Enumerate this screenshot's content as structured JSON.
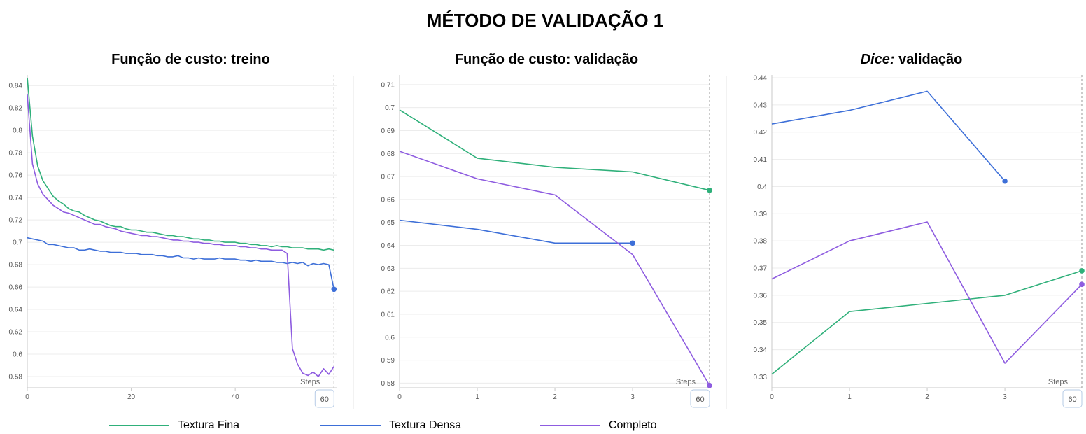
{
  "title": "MÉTODO DE VALIDAÇÃO 1",
  "colors": {
    "fina": "#2fb07a",
    "densa": "#3d6fd8",
    "completo": "#8e5ce0"
  },
  "legend": [
    {
      "name": "Textura Fina",
      "color": "#2fb07a"
    },
    {
      "name": "Textura Densa",
      "color": "#3d6fd8"
    },
    {
      "name": "Completo",
      "color": "#8e5ce0"
    }
  ],
  "chart_data": [
    {
      "type": "line",
      "title_prefix": "",
      "title": "Função de custo: treino",
      "xlabel": "Steps",
      "xlim": [
        0,
        59.5
      ],
      "ylim": [
        0.57,
        0.847
      ],
      "xticks": [
        0,
        20,
        40
      ],
      "yticks": [
        0.58,
        0.6,
        0.62,
        0.64,
        0.66,
        0.68,
        0.7,
        0.72,
        0.74,
        0.76,
        0.78,
        0.8,
        0.82,
        0.84
      ],
      "cursor": {
        "x": 59,
        "label": "60"
      },
      "grid": true,
      "series": [
        {
          "name": "Textura Fina",
          "color": "#2fb07a",
          "marker": false,
          "x": [
            0,
            1,
            2,
            3,
            4,
            5,
            6,
            7,
            8,
            9,
            10,
            11,
            12,
            13,
            14,
            15,
            16,
            17,
            18,
            19,
            20,
            21,
            22,
            23,
            24,
            25,
            26,
            27,
            28,
            29,
            30,
            31,
            32,
            33,
            34,
            35,
            36,
            37,
            38,
            39,
            40,
            41,
            42,
            43,
            44,
            45,
            46,
            47,
            48,
            49,
            50,
            51,
            52,
            53,
            54,
            55,
            56,
            57,
            58,
            59
          ],
          "y": [
            0.847,
            0.795,
            0.768,
            0.755,
            0.748,
            0.741,
            0.737,
            0.734,
            0.73,
            0.728,
            0.727,
            0.724,
            0.722,
            0.72,
            0.719,
            0.717,
            0.715,
            0.714,
            0.714,
            0.712,
            0.711,
            0.711,
            0.71,
            0.709,
            0.709,
            0.708,
            0.707,
            0.706,
            0.706,
            0.705,
            0.705,
            0.704,
            0.703,
            0.703,
            0.702,
            0.702,
            0.701,
            0.701,
            0.7,
            0.7,
            0.7,
            0.699,
            0.699,
            0.698,
            0.698,
            0.697,
            0.697,
            0.696,
            0.697,
            0.696,
            0.696,
            0.695,
            0.695,
            0.695,
            0.694,
            0.694,
            0.694,
            0.693,
            0.694,
            0.693
          ]
        },
        {
          "name": "Textura Densa",
          "color": "#3d6fd8",
          "marker": true,
          "x": [
            0,
            1,
            2,
            3,
            4,
            5,
            6,
            7,
            8,
            9,
            10,
            11,
            12,
            13,
            14,
            15,
            16,
            17,
            18,
            19,
            20,
            21,
            22,
            23,
            24,
            25,
            26,
            27,
            28,
            29,
            30,
            31,
            32,
            33,
            34,
            35,
            36,
            37,
            38,
            39,
            40,
            41,
            42,
            43,
            44,
            45,
            46,
            47,
            48,
            49,
            50,
            51,
            52,
            53,
            54,
            55,
            56,
            57,
            58,
            59
          ],
          "y": [
            0.704,
            0.703,
            0.702,
            0.701,
            0.698,
            0.698,
            0.697,
            0.696,
            0.695,
            0.695,
            0.693,
            0.693,
            0.694,
            0.693,
            0.692,
            0.692,
            0.691,
            0.691,
            0.691,
            0.69,
            0.69,
            0.69,
            0.689,
            0.689,
            0.689,
            0.688,
            0.688,
            0.687,
            0.687,
            0.688,
            0.686,
            0.686,
            0.685,
            0.686,
            0.685,
            0.685,
            0.685,
            0.686,
            0.685,
            0.685,
            0.685,
            0.684,
            0.684,
            0.683,
            0.684,
            0.683,
            0.683,
            0.683,
            0.682,
            0.682,
            0.681,
            0.682,
            0.681,
            0.682,
            0.679,
            0.681,
            0.68,
            0.681,
            0.68,
            0.658
          ]
        },
        {
          "name": "Completo",
          "color": "#8e5ce0",
          "marker": false,
          "x": [
            0,
            1,
            2,
            3,
            4,
            5,
            6,
            7,
            8,
            9,
            10,
            11,
            12,
            13,
            14,
            15,
            16,
            17,
            18,
            19,
            20,
            21,
            22,
            23,
            24,
            25,
            26,
            27,
            28,
            29,
            30,
            31,
            32,
            33,
            34,
            35,
            36,
            37,
            38,
            39,
            40,
            41,
            42,
            43,
            44,
            45,
            46,
            47,
            48,
            49,
            50,
            51,
            52,
            53,
            54,
            55,
            56,
            57,
            58,
            59
          ],
          "y": [
            0.832,
            0.77,
            0.752,
            0.743,
            0.738,
            0.733,
            0.73,
            0.727,
            0.726,
            0.724,
            0.722,
            0.72,
            0.718,
            0.716,
            0.716,
            0.714,
            0.713,
            0.712,
            0.71,
            0.709,
            0.708,
            0.707,
            0.706,
            0.706,
            0.705,
            0.705,
            0.704,
            0.703,
            0.702,
            0.702,
            0.701,
            0.701,
            0.7,
            0.7,
            0.699,
            0.699,
            0.698,
            0.698,
            0.697,
            0.697,
            0.697,
            0.696,
            0.696,
            0.695,
            0.695,
            0.694,
            0.694,
            0.693,
            0.693,
            0.693,
            0.69,
            0.605,
            0.591,
            0.583,
            0.581,
            0.584,
            0.58,
            0.587,
            0.582,
            0.589
          ]
        }
      ]
    },
    {
      "type": "line",
      "title_prefix": "",
      "title": "Função de custo: validação",
      "xlabel": "Steps",
      "xlim": [
        0,
        3.99
      ],
      "ylim": [
        0.578,
        0.713
      ],
      "xticks": [
        0,
        1,
        2,
        3
      ],
      "yticks": [
        0.58,
        0.59,
        0.6,
        0.61,
        0.62,
        0.63,
        0.64,
        0.65,
        0.66,
        0.67,
        0.68,
        0.69,
        0.7,
        0.71
      ],
      "cursor": {
        "x": 3.99,
        "label": "60"
      },
      "grid": true,
      "series": [
        {
          "name": "Textura Fina",
          "color": "#2fb07a",
          "marker": true,
          "x": [
            0,
            1,
            2,
            3,
            3.99
          ],
          "y": [
            0.699,
            0.678,
            0.674,
            0.672,
            0.664
          ]
        },
        {
          "name": "Textura Densa",
          "color": "#3d6fd8",
          "marker": true,
          "x": [
            0,
            1,
            2,
            3
          ],
          "y": [
            0.651,
            0.647,
            0.641,
            0.641
          ]
        },
        {
          "name": "Completo",
          "color": "#8e5ce0",
          "marker": true,
          "x": [
            0,
            1,
            2,
            3,
            3.99
          ],
          "y": [
            0.681,
            0.669,
            0.662,
            0.636,
            0.579
          ]
        }
      ]
    },
    {
      "type": "line",
      "title_prefix": "Dice:",
      "title": " validação",
      "xlabel": "Steps",
      "xlim": [
        0,
        3.99
      ],
      "ylim": [
        0.326,
        0.44
      ],
      "xticks": [
        0,
        1,
        2,
        3
      ],
      "yticks": [
        0.33,
        0.34,
        0.35,
        0.36,
        0.37,
        0.38,
        0.39,
        0.4,
        0.41,
        0.42,
        0.43,
        0.44
      ],
      "cursor": {
        "x": 3.99,
        "label": "60"
      },
      "grid": true,
      "series": [
        {
          "name": "Textura Fina",
          "color": "#2fb07a",
          "marker": true,
          "x": [
            0,
            1,
            2,
            3,
            3.99
          ],
          "y": [
            0.331,
            0.354,
            0.357,
            0.36,
            0.369
          ]
        },
        {
          "name": "Textura Densa",
          "color": "#3d6fd8",
          "marker": true,
          "x": [
            0,
            1,
            2,
            3
          ],
          "y": [
            0.423,
            0.428,
            0.435,
            0.402
          ]
        },
        {
          "name": "Completo",
          "color": "#8e5ce0",
          "marker": true,
          "x": [
            0,
            1,
            2,
            3,
            3.99
          ],
          "y": [
            0.366,
            0.38,
            0.387,
            0.335,
            0.364
          ]
        }
      ]
    }
  ]
}
